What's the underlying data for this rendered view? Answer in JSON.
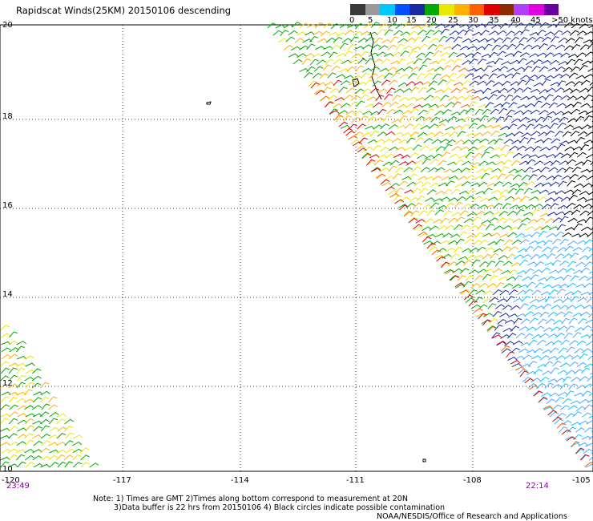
{
  "title": "Rapidscat Winds(25KM) 20150106 descending",
  "colorbar": {
    "colors": [
      "#3a3a3a",
      "#9a9a9a",
      "#00c8ff",
      "#0050ff",
      "#1a2aa0",
      "#00aa00",
      "#e8e800",
      "#ffb000",
      "#ff6000",
      "#e00000",
      "#8b2a00",
      "#b040ff",
      "#e000e0",
      "#6a00a0"
    ],
    "labels": [
      "0",
      "5",
      "10",
      "15",
      "20",
      "25",
      "30",
      "35",
      "40",
      "45",
      ">50 knots"
    ]
  },
  "y_axis_labels": [
    "20",
    "18",
    "16",
    "14",
    "12",
    "10"
  ],
  "x_axis_labels": [
    "-120",
    "-117",
    "-114",
    "-111",
    "-108",
    "-105"
  ],
  "time_left": "23:49",
  "time_right": "22:14",
  "notes": {
    "line1": "Note: 1) Times are GMT 2)Times along bottom correspond to measurement at 20N",
    "line2": "3)Data buffer is 22 hrs from 20150106 4) Black circles indicate possible contamination",
    "line3": "NOAA/NESDIS/Office of Research and Applications"
  }
}
